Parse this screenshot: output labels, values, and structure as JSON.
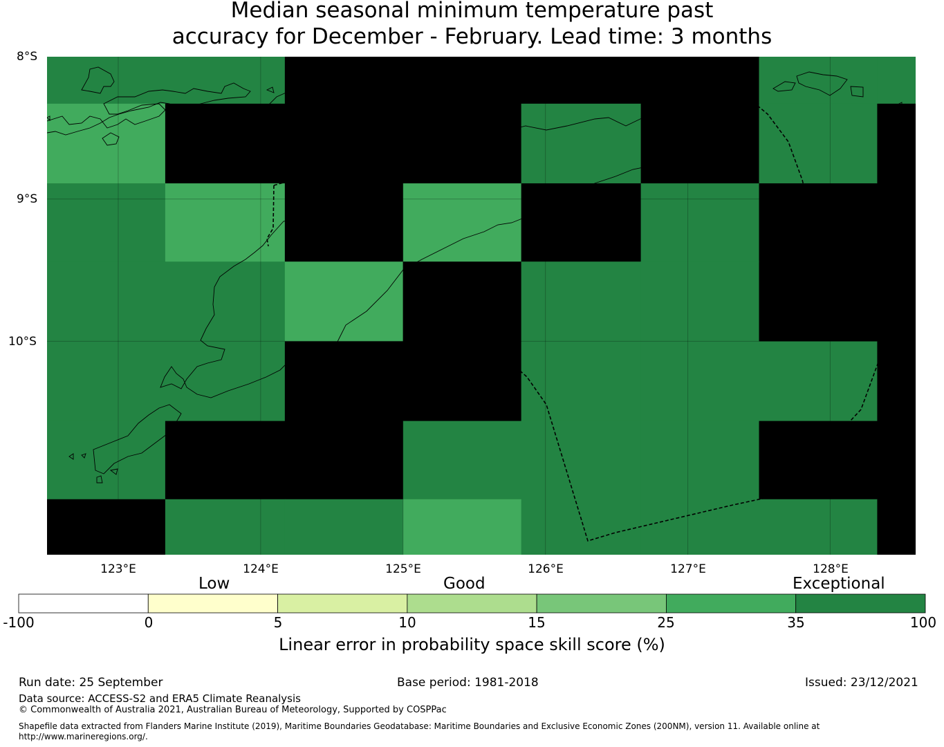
{
  "title_line1": "Median seasonal minimum temperature past",
  "title_line2": "accuracy for December - February. Lead time: 3 months",
  "map": {
    "lat_labels": [
      "8°S",
      "9°S",
      "10°S"
    ],
    "lon_labels": [
      "123°E",
      "124°E",
      "125°E",
      "126°E",
      "127°E",
      "128°E"
    ],
    "extent": {
      "lon": [
        122.5,
        128.6
      ],
      "lat": [
        -8.0,
        -11.5
      ]
    },
    "grid": {
      "lon_edges": [
        122.5,
        123.33,
        124.17,
        125.0,
        125.83,
        126.67,
        127.5,
        128.33,
        128.6
      ],
      "lat_edges": [
        -8.0,
        -8.33,
        -8.89,
        -9.44,
        -10.0,
        -10.56,
        -11.11,
        -11.5
      ],
      "classes": [
        [
          6,
          6,
          7,
          7,
          7,
          7,
          6,
          6
        ],
        [
          5,
          7,
          7,
          7,
          6,
          7,
          6,
          7
        ],
        [
          6,
          5,
          7,
          5,
          7,
          6,
          7,
          7
        ],
        [
          6,
          6,
          5,
          7,
          6,
          6,
          7,
          7
        ],
        [
          6,
          6,
          7,
          7,
          6,
          6,
          6,
          7
        ],
        [
          6,
          7,
          7,
          6,
          6,
          6,
          7,
          7
        ],
        [
          7,
          6,
          6,
          5,
          6,
          6,
          6,
          7
        ]
      ]
    }
  },
  "colorbar": {
    "categories": [
      "Low",
      "Good",
      "Exceptional"
    ],
    "ticks": [
      "-100",
      "0",
      "5",
      "10",
      "15",
      "25",
      "35",
      "100"
    ],
    "colors": [
      "#ffffff",
      "#ffffcc",
      "#d9f0a3",
      "#addd8e",
      "#78c679",
      "#41ab5d",
      "#238443"
    ],
    "label": "Linear error in probability space skill score (%)"
  },
  "footer": {
    "run_date": "Run date: 25 September",
    "base_period": "Base period: 1981-2018",
    "issued": "Issued: 23/12/2021",
    "data_source": "Data source: ACCESS-S2 and ERA5 Climate Reanalysis",
    "copyright": "© Commonwealth of Australia 2021, Australian Bureau of Meteorology, Supported by COSPPac",
    "shapefile_line1": "Shapefile data extracted from Flanders Marine Institute (2019), Maritime Boundaries Geodatabase: Maritime Boundaries and Exclusive Economic Zones (200NM), version 11. Available online at",
    "shapefile_line2": "http://www.marineregions.org/."
  }
}
